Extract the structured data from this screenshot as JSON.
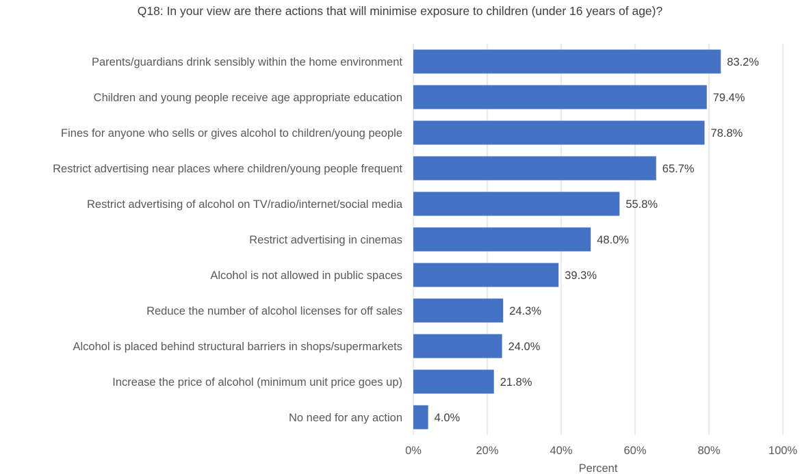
{
  "chart_data": {
    "type": "bar",
    "orientation": "horizontal",
    "title": "Q18: In your view are there actions that will minimise exposure to children (under 16 years of age)?",
    "xlabel": "Percent",
    "ylabel": "",
    "xlim": [
      0,
      100
    ],
    "x_ticks": [
      "0%",
      "20%",
      "40%",
      "60%",
      "80%",
      "100%"
    ],
    "grid": true,
    "legend": "none",
    "bar_color": "#4472c4",
    "categories": [
      "Parents/guardians drink sensibly within the home environment",
      "Children and young people receive age appropriate education",
      "Fines for anyone who sells or gives alcohol to children/young people",
      "Restrict advertising near places where children/young people frequent",
      "Restrict advertising of alcohol on TV/radio/internet/social media",
      "Restrict advertising in cinemas",
      "Alcohol is not allowed in public spaces",
      "Reduce the number of alcohol licenses for off sales",
      "Alcohol is placed behind structural barriers in shops/supermarkets",
      "Increase the price of alcohol (minimum unit price goes up)",
      "No need for any action"
    ],
    "values": [
      83.2,
      79.4,
      78.8,
      65.7,
      55.8,
      48.0,
      39.3,
      24.3,
      24.0,
      21.8,
      4.0
    ],
    "value_labels": [
      "83.2%",
      "79.4%",
      "78.8%",
      "65.7%",
      "55.8%",
      "48.0%",
      "39.3%",
      "24.3%",
      "24.0%",
      "21.8%",
      "4.0%"
    ]
  }
}
